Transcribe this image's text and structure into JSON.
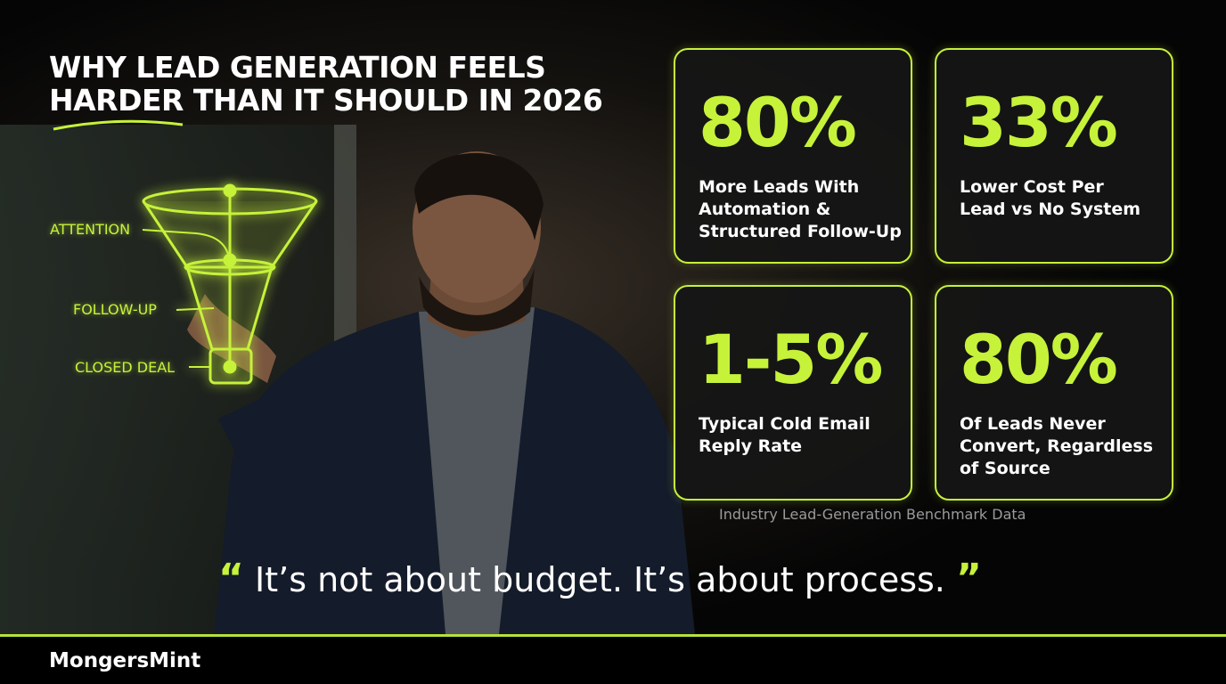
{
  "header": {
    "title_lines": [
      "WHY LEAD GENERATION FEELS",
      "HARDER THAN IT SHOULD IN 2026"
    ]
  },
  "funnel": {
    "labels": [
      "ATTENTION",
      "FOLLOW-UP",
      "CLOSED DEAL"
    ]
  },
  "stats": [
    {
      "value": "80%",
      "label_lines": [
        "More Leads With",
        "Automation &",
        "Structured Follow-Up"
      ]
    },
    {
      "value": "33%",
      "label_lines": [
        "Lower Cost Per",
        "Lead vs No System"
      ]
    },
    {
      "value": "1-5%",
      "label_lines": [
        "Typical Cold Email",
        "Reply Rate"
      ]
    },
    {
      "value": "80%",
      "label_lines": [
        "Of Leads Never",
        "Convert, Regardless",
        "of Source"
      ]
    }
  ],
  "source_note": "Industry Lead-Generation Benchmark Data",
  "quote": {
    "open": "“",
    "text": "It’s not about budget. It’s about process.",
    "close": "”"
  },
  "footer": {
    "brand": "MongersMint"
  }
}
